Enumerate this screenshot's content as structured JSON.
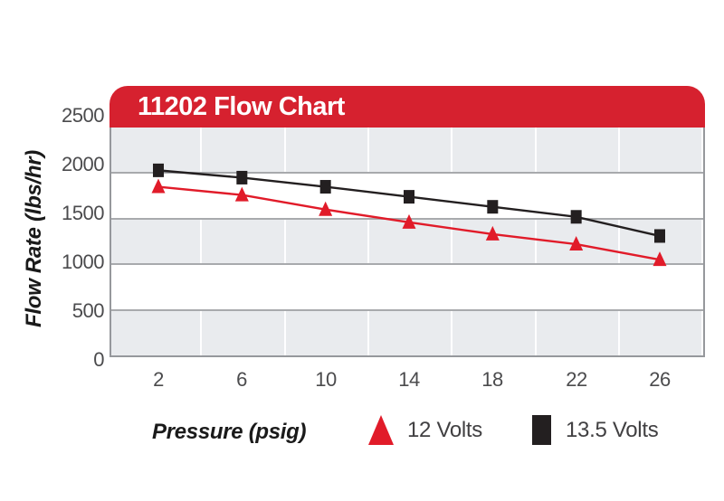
{
  "header": {
    "title": "11202 Flow Chart"
  },
  "chart_data": {
    "type": "line",
    "title": "11202 Flow Chart",
    "xlabel": "Pressure (psig)",
    "ylabel": "Flow Rate (lbs/hr)",
    "categories": [
      2,
      6,
      10,
      14,
      18,
      22,
      26
    ],
    "yticks_top_to_bottom": [
      2500,
      2000,
      1500,
      1000,
      500,
      0
    ],
    "ylim": [
      0,
      2500
    ],
    "xlim": [
      2,
      26
    ],
    "grid": true,
    "legend_position": "bottom",
    "series": [
      {
        "name": "12 Volts",
        "marker": "triangle",
        "color": "#e11b29",
        "values": [
          1850,
          1760,
          1600,
          1460,
          1330,
          1220,
          1050
        ]
      },
      {
        "name": "13.5 Volts",
        "marker": "square",
        "color": "#231f20",
        "values": [
          2030,
          1950,
          1850,
          1740,
          1630,
          1520,
          1310
        ]
      }
    ]
  },
  "colors": {
    "header_bg": "#d6212f",
    "header_text": "#ffffff",
    "band_gray": "#e9ebee",
    "grid_gray": "#a8aaad",
    "plot_border": "#96989c",
    "tick_text": "#4b4b4d",
    "series_red": "#e11b29",
    "series_black": "#231f20"
  }
}
